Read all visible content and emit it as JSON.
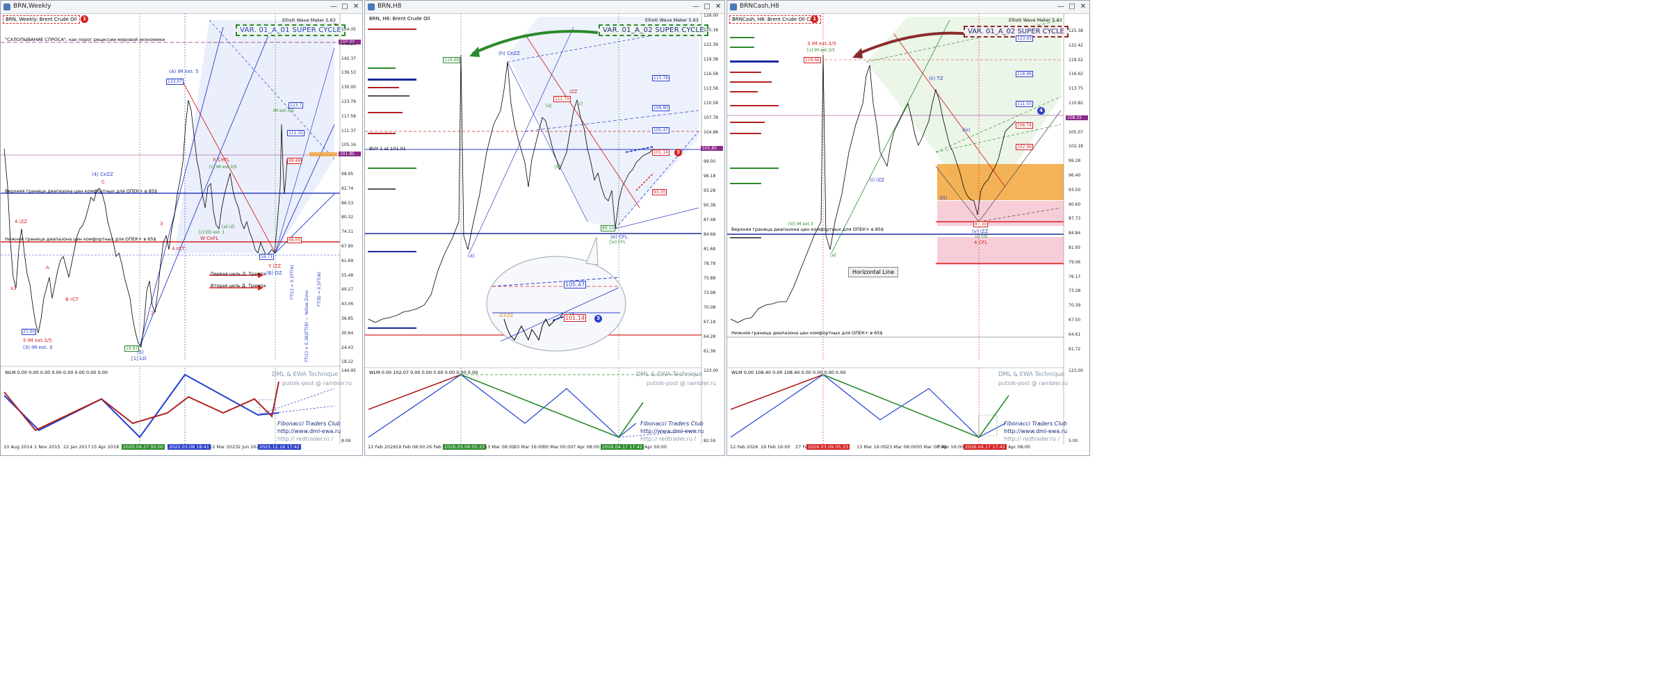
{
  "pane1": {
    "title": "BRN,Weekly",
    "symbol": "BRN, Weekly:  Brent Crude Oil",
    "badge1": "1",
    "badge2": "2",
    "ewm": "Elliott Wave Maker 5.63",
    "var": "VAR. 01_A_01 SUPER CYCLE",
    "note_top": "\"СХЛОПЫВАНИЕ СПРОСА\", как порог рецессии мировой экономики",
    "upper_bound": "Верхняя граница диапазона цен комфортных для ОПЕК+ в 85$",
    "lower_bound": "Нижняя граница диапазона цен комфортных для ОПЕК+ в 65$",
    "target1": "Первая цель Д. Трампа",
    "target2": "Вторая цель Д. Трампа",
    "wave_labels": {
      "a_im": "(A) IM ext. 5",
      "ceezz": "(4) CeZZ",
      "c": "C",
      "x_cefl": "X CeFL",
      "c_im": "[c] IM ext.3/5",
      "w_cefl": "W CeFL",
      "c_ed": "[c] ED ext. 1",
      "a_ld": "[a] LD",
      "four_izz": "4 iZZ",
      "a": "A",
      "b_rct": "B rCT",
      "four_rct": "4 rCT",
      "three": "3",
      "two": "2",
      "x3": "x3",
      "five_im": "5 IM ext.3/5",
      "three_im": "(3) IM ext. 3",
      "one_ld": "[1] LD",
      "five": "(5)",
      "y_izz": "Y iZZ",
      "b_dz": "(B) DZ",
      "im_ext": "IM ext.3/5"
    },
    "box_labels": {
      "b133": "133.07",
      "b27": "27.00",
      "b19": "19.97",
      "b58": "58.71",
      "b111": "111.32",
      "b99": "99.49",
      "b66": "66.05",
      "b123": "123.7"
    },
    "fib_texts": [
      "FT(C) = 0.5FT(A)",
      "FT(C) = 0.382FT(B) — Yellow Zone",
      "FT(B) = 0.5FT(A)"
    ],
    "prices": [
      "154.05",
      "148.21",
      "142.37",
      "136.53",
      "130.00",
      "123.79",
      "117.58",
      "111.37",
      "105.16",
      "101.85",
      "98.95",
      "92.74",
      "86.53",
      "80.32",
      "74.11",
      "67.90",
      "61.69",
      "55.48",
      "49.27",
      "43.06",
      "36.85",
      "30.64",
      "24.43",
      "18.22"
    ],
    "current_price": "101.85",
    "price_150": "150.00",
    "wlm": "WLM 0.00 0.00 0.00 0.00 0.00 0.00 0.00 0.00",
    "sub_prices": [
      "144.95",
      "8.09"
    ],
    "dates": [
      "10 Aug 2014",
      "1 Nov 2015",
      "22 Jan 2017",
      "15 Apr 2018",
      "2020.04.27 00:00",
      "2022.03.08 18:41",
      "12 Mar 2023",
      "2 Jun 202",
      "2025.12.16 17:42"
    ],
    "watermark": "DML & EWA Technique",
    "watermark2": "putnik-post @ rambler.ru",
    "fib_club": "Fibonacci   Traders   Club",
    "fib_url": "http://www.dml-ewa.ru",
    "red_url": "http:// redtrader.ru /"
  },
  "pane2": {
    "title": "BRN,H8",
    "symbol": "BRN, H8:  Brent Crude Oil",
    "badge2": "2",
    "badge3": "3",
    "ewm": "Elliott Wave Maker 5.63",
    "var": "VAR. 01_A_02 SUPER CYCLE",
    "buy": "BUY 1 at 101.01",
    "wave_labels": {
      "h_cezz": "(h) CeZZ",
      "izz": "iZZ",
      "b": "b",
      "ii": "ii",
      "iii": "iii",
      "ci": "[c]",
      "a": "(a)",
      "d": "(d)",
      "ecfl": "(e) CFL",
      "cfl": "[iv] CFL",
      "a_top": "[a]",
      "b_lab": "[b]",
      "c_lab": "[c]"
    },
    "box_labels": {
      "b119": "119.49",
      "b115": "115.78",
      "b111": "111.79",
      "b109": "109.80",
      "b105": "105.47",
      "b101": "101.14",
      "b93": "93.30",
      "b86": "86.10"
    },
    "zoom_labels": {
      "z105": "105.47",
      "z101": "101.14",
      "zcfl": "iCFZZ"
    },
    "prices": [
      "128.00",
      "125.18",
      "122.39",
      "119.38",
      "116.58",
      "113.58",
      "110.58",
      "107.78",
      "104.88",
      "101.85",
      "99.00",
      "96.18",
      "93.28",
      "90.38",
      "87.48",
      "84.68",
      "81.68",
      "78.78",
      "75.88",
      "72.98",
      "70.08",
      "67.18",
      "64.28",
      "61.38"
    ],
    "current_price": "101.85",
    "wlm": "WLM 0.00 102.07 0.00 0.00 0.00 0.00 0.00 0.00",
    "sub_prices": [
      "123.00",
      "82.59"
    ],
    "dates": [
      "12 Feb 2026",
      "19 Feb 08:00",
      "26 Feb 1",
      "2026.03.09 05:33",
      "13 Mar 08:00",
      "20 Mar 16:00",
      "30 Mar 00:00",
      "7 Apr 08:00",
      "2026.04.17 17:42",
      "Apr 00:00"
    ],
    "watermark": "DML & EWA Technique",
    "watermark2": "putnik-post @ rambler.ru",
    "fib_club": "Fibonacci   Traders   Club",
    "fib_url": "http://www.dml-ewa.ru",
    "red_url": "http:// redtrader.ru /"
  },
  "pane3": {
    "title": "BRNCash,H8",
    "symbol": "BRNCash, H8:  Brent Crude Oil Cash",
    "badge1": "1",
    "badge2": "2",
    "badge4": "4",
    "ewm": "Elliott Wave Maker 5.63",
    "var": "VAR. 01_A_02 SUPER CYCLE",
    "upper_bound": "Верхняя граница диапазона цен комфортных для ОПЕК+ в 85$",
    "lower_bound": "Нижняя граница диапазона цен комфортных для ОПЕК+ в 65$",
    "tooltip": "Horizontal Line",
    "wave_labels": {
      "im35": "3 IM ext.3/5",
      "v_im": "[v] IM ext.3/5",
      "ii_tz": "(ii) TZ",
      "izz": "(i) iZZ",
      "iii": "(iii)",
      "iv": "(iv)",
      "v": "[v]",
      "im_ext": "[iii] IM ext.3",
      "ziizz": "(v) iZZ",
      "z_ed": "(z) ED",
      "four_cfl": "4 CFL",
      "a": "[a]"
    },
    "box_labels": {
      "b123": "123.93",
      "b119": "119.66",
      "b116": "116.96",
      "b111": "111.03",
      "b106": "106.74",
      "b102": "102.46",
      "b87": "87.30"
    },
    "prices": [
      "125.38",
      "122.42",
      "119.52",
      "116.62",
      "113.75",
      "110.82",
      "108.25",
      "105.07",
      "102.18",
      "99.28",
      "96.40",
      "93.50",
      "90.60",
      "87.73",
      "84.84",
      "81.95",
      "79.06",
      "76.17",
      "73.28",
      "70.39",
      "67.50",
      "64.61",
      "61.72"
    ],
    "current_price": "108.25",
    "wlm": "WLM 0.00 108.40 0.00 108.40 0.00 0.00 0.00 0.00",
    "sub_prices": [
      "123.00",
      "5.00"
    ],
    "dates": [
      "12 Feb 2026",
      "19 Feb 16:00",
      "27 Feb",
      "2026.03.09 05:33",
      "13 Mar 16:00",
      "23 Mar 08:00",
      "30 Mar 08:00",
      "7 Apr 16:00",
      "2026.04.17 17:42",
      "Apr 08:00"
    ],
    "watermark": "DML & EWA Technique",
    "watermark2": "putnik-post @ rambler.ru",
    "fib_club": "Fibonacci   Traders   Club",
    "fib_url": "http://www.dml-ewa.ru",
    "red_url": "http:// redtrader.ru /"
  },
  "colors": {
    "blue_line": "#2a3fc9",
    "red_line": "#d62020",
    "green_line": "#2b8a2b",
    "orange_zone": "#f3a43a",
    "pink_zone": "#f6c9d4",
    "channel_fill": "#e6ebfa"
  }
}
